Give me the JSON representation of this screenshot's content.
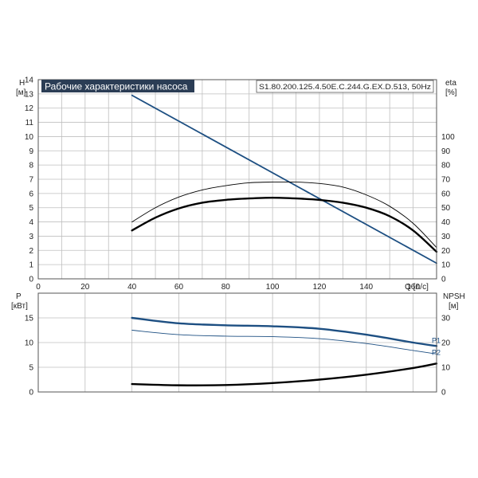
{
  "colors": {
    "grid": "#bfbfbf",
    "frame": "#555555",
    "blue": "#1d4f82",
    "black": "#000000",
    "title_bg": "#2b3d55",
    "title_text": "#ffffff"
  },
  "chart_data": [
    {
      "type": "line",
      "title": "Рабочие характеристики насоса",
      "model": "S1.80.200.125.4.50E.C.244.G.EX.D.513, 50Hz",
      "xlabel": "Q [л/с]",
      "ylabel": "H",
      "ylabel_unit": "[м]",
      "y2label": "eta",
      "y2label_unit": "[%]",
      "xlim": [
        0,
        170
      ],
      "ylim": [
        0,
        14
      ],
      "y2lim": [
        0,
        140
      ],
      "x_ticks": [
        0,
        20,
        40,
        60,
        80,
        100,
        120,
        140,
        160
      ],
      "y_ticks": [
        0,
        1,
        2,
        3,
        4,
        5,
        6,
        7,
        8,
        9,
        10,
        11,
        12,
        13,
        14
      ],
      "y2_ticks": [
        0,
        10,
        20,
        30,
        40,
        50,
        60,
        70,
        80,
        90,
        100
      ],
      "grid": true,
      "series": [
        {
          "axis": "left",
          "color": "#1d4f82",
          "weight": "medium",
          "x": [
            40,
            170
          ],
          "y": [
            12.9,
            1.1
          ]
        },
        {
          "axis": "right",
          "color": "#000000",
          "weight": "thin",
          "x": [
            40,
            50,
            60,
            70,
            80,
            90,
            100,
            110,
            120,
            130,
            140,
            150,
            160,
            170
          ],
          "y": [
            40,
            50,
            57.5,
            62.5,
            65.5,
            67.5,
            68,
            68,
            67,
            64.5,
            59,
            51,
            39,
            22
          ]
        },
        {
          "axis": "right",
          "color": "#000000",
          "weight": "thick",
          "x": [
            40,
            50,
            60,
            70,
            80,
            90,
            100,
            110,
            120,
            130,
            140,
            150,
            160,
            170
          ],
          "y": [
            34,
            43,
            49.5,
            53.5,
            55.5,
            56.5,
            57,
            56.5,
            55.5,
            53.5,
            50,
            44,
            34,
            19
          ]
        }
      ]
    },
    {
      "type": "line",
      "ylabel": "P",
      "ylabel_unit": "[кВт]",
      "y2label": "NPSH",
      "y2label_unit": "[м]",
      "xlim": [
        0,
        170
      ],
      "ylim": [
        0,
        20
      ],
      "y2lim": [
        0,
        40
      ],
      "y_ticks": [
        0,
        5,
        10,
        15
      ],
      "y2_ticks": [
        0,
        10,
        20,
        30
      ],
      "grid": true,
      "series": [
        {
          "name": "P1",
          "axis": "left",
          "color": "#1d4f82",
          "weight": "thick",
          "x": [
            40,
            60,
            80,
            100,
            120,
            140,
            160,
            170
          ],
          "y": [
            15,
            13.9,
            13.5,
            13.3,
            12.8,
            11.6,
            10,
            9.3
          ]
        },
        {
          "name": "P2",
          "axis": "left",
          "color": "#1d4f82",
          "weight": "thin",
          "x": [
            40,
            60,
            80,
            100,
            120,
            140,
            160,
            170
          ],
          "y": [
            12.5,
            11.6,
            11.3,
            11.2,
            10.8,
            9.8,
            8.4,
            7.7
          ]
        },
        {
          "axis": "right",
          "color": "#000000",
          "weight": "thick",
          "x": [
            40,
            60,
            80,
            100,
            120,
            140,
            160,
            170
          ],
          "y": [
            3.2,
            2.7,
            2.8,
            3.6,
            5,
            7,
            9.7,
            11.5
          ]
        }
      ]
    }
  ]
}
